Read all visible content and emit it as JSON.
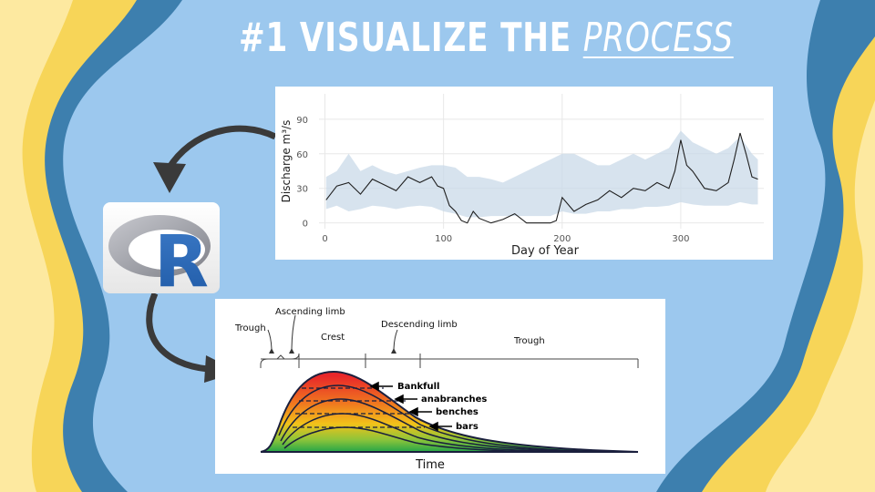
{
  "slide": {
    "title_prefix": "#1 VISUALIZE THE ",
    "title_accent": "PROCESS",
    "colors": {
      "background": "#9cc8ee",
      "wave_dark": "#3d7fae",
      "wave_yellow": "#f7d558",
      "wave_light": "#fde9a0",
      "arrow": "#3a3a3a"
    }
  },
  "r_logo": {
    "letter": "R",
    "icon": "r-logo-icon"
  },
  "chart_data": {
    "type": "line",
    "xlabel": "Day of Year",
    "ylabel": "Discharge m³/s",
    "xticks": [
      0,
      100,
      200,
      300
    ],
    "yticks": [
      0,
      30,
      60,
      90
    ],
    "xlim": [
      -5,
      370
    ],
    "ylim": [
      -5,
      112
    ],
    "grid": true,
    "series": [
      {
        "x": [
          1,
          10,
          20,
          30,
          40,
          50,
          60,
          70,
          80,
          90,
          95,
          100,
          105,
          110,
          115,
          120,
          125,
          130,
          140,
          150,
          160,
          170,
          180,
          190,
          195,
          200,
          210,
          220,
          230,
          240,
          250,
          260,
          270,
          280,
          290,
          295,
          300,
          305,
          310,
          320,
          330,
          340,
          345,
          350,
          355,
          360,
          365
        ],
        "y": [
          20,
          32,
          35,
          25,
          38,
          33,
          28,
          40,
          35,
          40,
          32,
          30,
          15,
          10,
          2,
          0,
          10,
          4,
          0,
          3,
          8,
          0,
          0,
          0,
          2,
          22,
          10,
          16,
          20,
          28,
          22,
          30,
          28,
          35,
          30,
          45,
          72,
          50,
          45,
          30,
          28,
          35,
          55,
          78,
          60,
          40,
          38
        ]
      }
    ],
    "band": {
      "x": [
        1,
        10,
        20,
        30,
        40,
        50,
        60,
        70,
        80,
        90,
        100,
        110,
        120,
        130,
        140,
        150,
        160,
        170,
        180,
        190,
        200,
        210,
        220,
        230,
        240,
        250,
        260,
        270,
        280,
        290,
        300,
        310,
        320,
        330,
        340,
        350,
        360,
        365
      ],
      "low": [
        12,
        15,
        10,
        12,
        15,
        14,
        12,
        14,
        15,
        14,
        10,
        8,
        5,
        5,
        6,
        6,
        6,
        6,
        6,
        6,
        10,
        8,
        8,
        10,
        10,
        12,
        12,
        14,
        14,
        15,
        18,
        16,
        15,
        15,
        15,
        18,
        16,
        16
      ],
      "high": [
        40,
        45,
        60,
        45,
        50,
        45,
        42,
        45,
        48,
        50,
        50,
        48,
        40,
        40,
        38,
        35,
        40,
        45,
        50,
        55,
        60,
        60,
        55,
        50,
        50,
        55,
        60,
        55,
        60,
        65,
        80,
        70,
        65,
        60,
        65,
        75,
        60,
        55
      ]
    }
  },
  "hydrograph": {
    "labels": {
      "trough_left": "Trough",
      "ascending_limb": "Ascending limb",
      "crest": "Crest",
      "descending_limb": "Descending limb",
      "trough_right": "Trough",
      "bankfull": "Bankfull",
      "anabranches": "anabranches",
      "benches": "benches",
      "bars": "bars",
      "x_axis": "Time"
    }
  }
}
